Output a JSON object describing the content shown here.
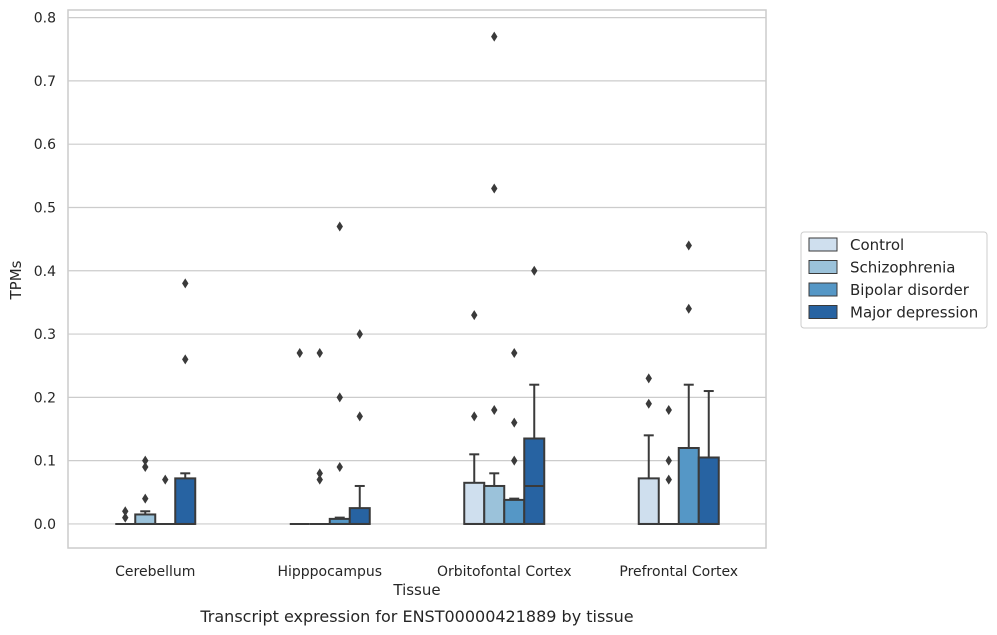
{
  "caption": "Transcript expression for ENST00000421889 by tissue",
  "chart_data": {
    "type": "box",
    "xlabel": "Tissue",
    "ylabel": "TPMs",
    "ylim": [
      -0.038,
      0.812
    ],
    "yticks": [
      0.0,
      0.1,
      0.2,
      0.3,
      0.4,
      0.5,
      0.6,
      0.7,
      0.8
    ],
    "ytick_labels": [
      "0.0",
      "0.1",
      "0.2",
      "0.3",
      "0.4",
      "0.5",
      "0.6",
      "0.7",
      "0.8"
    ],
    "grid": "horizontal",
    "legend_position": "right",
    "categories": [
      "Cerebellum",
      "Hipppocampus",
      "Orbitofontal Cortex",
      "Prefrontal Cortex"
    ],
    "series": [
      {
        "name": "Control",
        "color": "#cfdfee",
        "boxes": [
          {
            "q1": 0,
            "median": 0,
            "q3": 0,
            "whisker_low": 0,
            "whisker_high": 0,
            "outliers": [
              0.01,
              0.02
            ]
          },
          {
            "q1": 0,
            "median": 0,
            "q3": 0,
            "whisker_low": 0,
            "whisker_high": 0,
            "outliers": [
              0.27
            ]
          },
          {
            "q1": 0,
            "median": 0,
            "q3": 0.065,
            "whisker_low": 0,
            "whisker_high": 0.11,
            "outliers": [
              0.17,
              0.33
            ]
          },
          {
            "q1": 0,
            "median": 0,
            "q3": 0.072,
            "whisker_low": 0,
            "whisker_high": 0.14,
            "outliers": [
              0.19,
              0.23
            ]
          }
        ]
      },
      {
        "name": "Schizophrenia",
        "color": "#9bc2da",
        "boxes": [
          {
            "q1": 0,
            "median": 0,
            "q3": 0.015,
            "whisker_low": 0,
            "whisker_high": 0.02,
            "outliers": [
              0.04,
              0.09,
              0.1
            ]
          },
          {
            "q1": 0,
            "median": 0,
            "q3": 0,
            "whisker_low": 0,
            "whisker_high": 0,
            "outliers": [
              0.07,
              0.08,
              0.27
            ]
          },
          {
            "q1": 0,
            "median": 0,
            "q3": 0.06,
            "whisker_low": 0,
            "whisker_high": 0.08,
            "outliers": [
              0.18,
              0.53,
              0.77
            ]
          },
          {
            "q1": 0,
            "median": 0,
            "q3": 0,
            "whisker_low": 0,
            "whisker_high": 0,
            "outliers": [
              0.07,
              0.1,
              0.18
            ]
          }
        ]
      },
      {
        "name": "Bipolar disorder",
        "color": "#5597c6",
        "boxes": [
          {
            "q1": 0,
            "median": 0,
            "q3": 0,
            "whisker_low": 0,
            "whisker_high": 0,
            "outliers": [
              0.07
            ]
          },
          {
            "q1": 0,
            "median": 0,
            "q3": 0.008,
            "whisker_low": 0,
            "whisker_high": 0.01,
            "outliers": [
              0.09,
              0.2,
              0.47
            ]
          },
          {
            "q1": 0,
            "median": 0,
            "q3": 0.038,
            "whisker_low": 0,
            "whisker_high": 0.04,
            "outliers": [
              0.1,
              0.16,
              0.27
            ]
          },
          {
            "q1": 0,
            "median": 0,
            "q3": 0.12,
            "whisker_low": 0,
            "whisker_high": 0.22,
            "outliers": [
              0.34,
              0.44
            ]
          }
        ]
      },
      {
        "name": "Major depression",
        "color": "#2763a2",
        "boxes": [
          {
            "q1": 0,
            "median": 0,
            "q3": 0.072,
            "whisker_low": 0,
            "whisker_high": 0.08,
            "outliers": [
              0.26,
              0.38
            ]
          },
          {
            "q1": 0,
            "median": 0,
            "q3": 0.025,
            "whisker_low": 0,
            "whisker_high": 0.06,
            "outliers": [
              0.17,
              0.3
            ]
          },
          {
            "q1": 0,
            "median": 0.06,
            "q3": 0.135,
            "whisker_low": 0,
            "whisker_high": 0.22,
            "outliers": [
              0.4
            ]
          },
          {
            "q1": 0,
            "median": 0,
            "q3": 0.105,
            "whisker_low": 0,
            "whisker_high": 0.21,
            "outliers": []
          }
        ]
      }
    ]
  }
}
